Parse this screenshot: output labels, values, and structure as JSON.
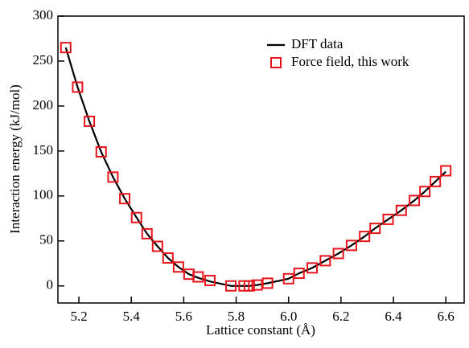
{
  "chart_data": {
    "type": "line",
    "x_label": "Lattice constant (Å)",
    "y_label": "Interaction energy (kJ/mol)",
    "x": [
      5.15,
      5.195,
      5.24,
      5.285,
      5.33,
      5.375,
      5.42,
      5.46,
      5.5,
      5.54,
      5.58,
      5.62,
      5.655,
      5.7,
      5.78,
      5.83,
      5.85,
      5.88,
      5.92,
      6.0,
      6.04,
      6.09,
      6.14,
      6.19,
      6.24,
      6.29,
      6.33,
      6.38,
      6.43,
      6.48,
      6.52,
      6.56,
      6.6
    ],
    "series": [
      {
        "name": "DFT data",
        "color": "#000000",
        "marker": "none",
        "values": [
          265,
          221,
          183,
          149,
          121,
          97,
          76,
          58,
          44,
          31,
          21,
          13,
          9,
          5,
          0,
          0,
          0,
          1,
          3,
          8,
          14,
          20,
          28,
          36,
          45,
          55,
          64,
          74,
          84,
          95,
          105,
          116,
          127
        ]
      },
      {
        "name": "Force field, this work",
        "color": "#e8141b",
        "marker": "square",
        "values": [
          265,
          221,
          183,
          149,
          121,
          97,
          76,
          58,
          44,
          31,
          21,
          13,
          10,
          6,
          0,
          0,
          0,
          1,
          3,
          8,
          14,
          20,
          28,
          36,
          45,
          55,
          64,
          74,
          84,
          95,
          105,
          116,
          128
        ]
      }
    ],
    "xlim": [
      5.12,
      6.67
    ],
    "ylim": [
      -19,
      300
    ],
    "xticks": [
      5.2,
      5.4,
      5.6,
      5.8,
      {
        "value": 6,
        "label": "6.0"
      },
      6.2,
      6.4,
      6.6
    ],
    "yticks": [
      0,
      50,
      100,
      150,
      200,
      250,
      300
    ],
    "legend": "top-right"
  }
}
